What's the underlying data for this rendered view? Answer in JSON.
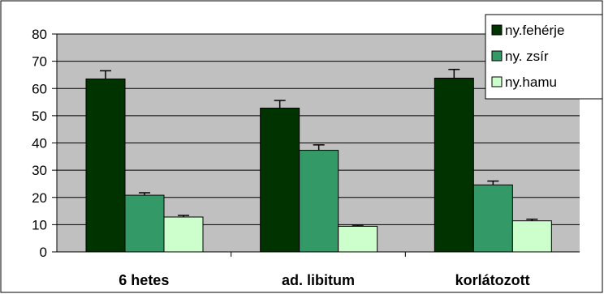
{
  "chart_data": {
    "type": "bar",
    "title": "",
    "xlabel": "",
    "ylabel": "",
    "ylim": [
      0,
      80
    ],
    "yticks": [
      0,
      10,
      20,
      30,
      40,
      50,
      60,
      70,
      80
    ],
    "grid": true,
    "legend_position": "top-right",
    "categories": [
      "6 hetes",
      "ad. libitum",
      "korlátozott"
    ],
    "series": [
      {
        "name": "ny.fehérje",
        "color": "#003300",
        "values": [
          63.5,
          52.8,
          63.8
        ],
        "errors": [
          3.0,
          2.8,
          3.2
        ]
      },
      {
        "name": "ny. zsír",
        "color": "#339966",
        "values": [
          20.8,
          37.3,
          24.6
        ],
        "errors": [
          0.9,
          2.0,
          1.4
        ]
      },
      {
        "name": "ny.hamu",
        "color": "#CCFFCC",
        "values": [
          12.8,
          9.4,
          11.4
        ],
        "errors": [
          0.6,
          0.4,
          0.6
        ]
      }
    ],
    "plot_background": "#C0C0C0"
  }
}
